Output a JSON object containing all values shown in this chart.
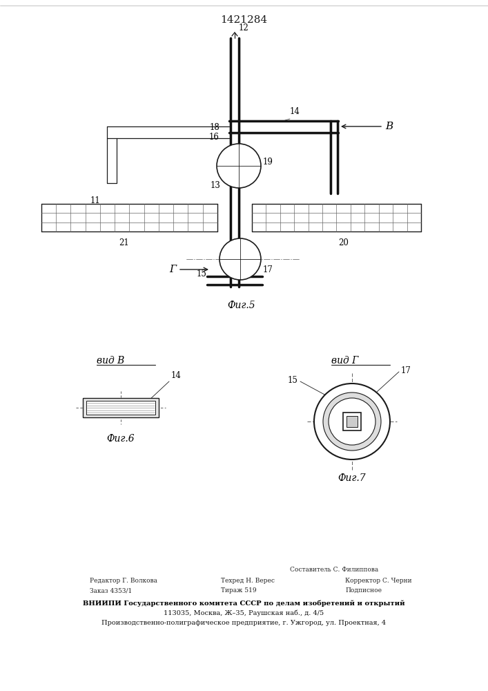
{
  "title": "1421284",
  "bg_color": "#ffffff",
  "line_color": "#1a1a1a",
  "fig5_label": "Фиг.5",
  "fig6_label": "Фиг.6",
  "fig7_label": "Фиг.7",
  "vid_b_label": "вид B",
  "vid_g_label": "вид Г",
  "footer_col1_line1": "Редактор Г. Волкова",
  "footer_col1_line2": "Заказ 4353/1",
  "footer_col2_line1": "Техред Н. Верес",
  "footer_col2_line2": "Тираж 519",
  "footer_col3_line1": "Корректор С. Черни",
  "footer_col3_line2": "Подписное",
  "footer_author": "Составитель С. Филиппова",
  "footer_vniipи": "ВНИИПИ Государственного комитета СССР по делам изобретений и открытий",
  "footer_addr1": "113035, Москва, Ж–35, Раушская наб., д. 4/5",
  "footer_addr2": "Производственно-полиграфическое предприятие, г. Ужгород, ул. Проектная, 4"
}
